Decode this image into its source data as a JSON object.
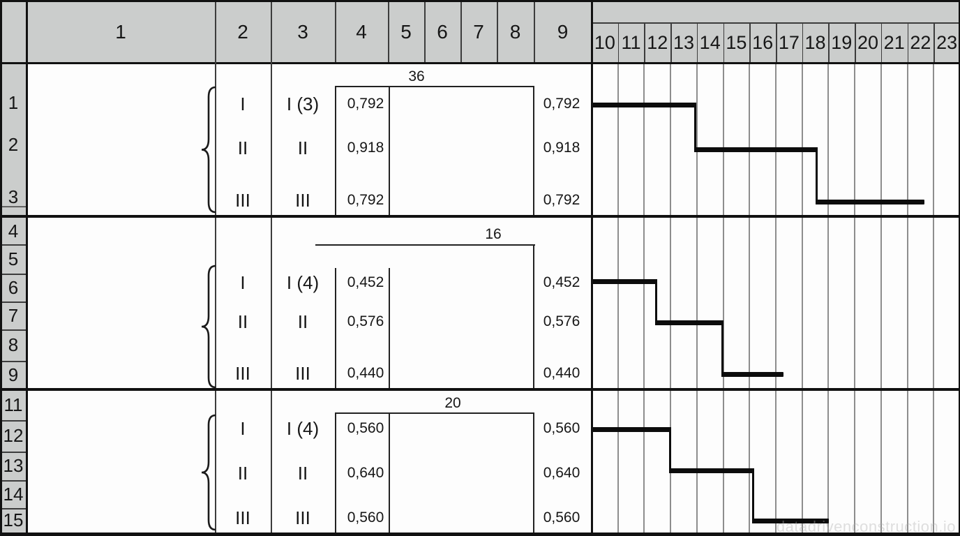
{
  "header": {
    "left_columns": [
      "1",
      "2",
      "3",
      "4",
      "5",
      "6",
      "7",
      "8",
      "9"
    ],
    "right_columns": [
      "10",
      "11",
      "12",
      "13",
      "14",
      "15",
      "16",
      "17",
      "18",
      "19",
      "20",
      "21",
      "22",
      "23"
    ]
  },
  "row_numbers": [
    "1",
    "2",
    "3",
    "4",
    "5",
    "6",
    "7",
    "8",
    "9",
    "11",
    "12",
    "13",
    "14",
    "15"
  ],
  "groups": [
    {
      "duration_label": "36",
      "rows": [
        {
          "col2": "I",
          "col3": "I (3)",
          "col4": "0,792",
          "col9": "0,792"
        },
        {
          "col2": "II",
          "col3": "II",
          "col4": "0,918",
          "col9": "0,918"
        },
        {
          "col2": "III",
          "col3": "III",
          "col4": "0,792",
          "col9": "0,792"
        }
      ]
    },
    {
      "duration_label": "16",
      "rows": [
        {
          "col2": "I",
          "col3": "I (4)",
          "col4": "0,452",
          "col9": "0,452"
        },
        {
          "col2": "II",
          "col3": "II",
          "col4": "0,576",
          "col9": "0,576"
        },
        {
          "col2": "III",
          "col3": "III",
          "col4": "0,440",
          "col9": "0,440"
        }
      ]
    },
    {
      "duration_label": "20",
      "rows": [
        {
          "col2": "I",
          "col3": "I (4)",
          "col4": "0,560",
          "col9": "0,560"
        },
        {
          "col2": "II",
          "col3": "II",
          "col4": "0,640",
          "col9": "0,640"
        },
        {
          "col2": "III",
          "col3": "III",
          "col4": "0,560",
          "col9": "0,560"
        }
      ]
    }
  ],
  "watermark": "datadrivenconstruction.io",
  "colors": {
    "header_fill": "#cbcdcc",
    "grid_line": "#8d8d8d",
    "bar": "#0c0c0c",
    "border": "#111111",
    "watermark": "#bdbdbd"
  },
  "chart_data": {
    "type": "gantt",
    "title": "",
    "x_axis": {
      "columns": [
        10,
        11,
        12,
        13,
        14,
        15,
        16,
        17,
        18,
        19,
        20,
        21,
        22,
        23
      ],
      "unit": "time-column",
      "range": [
        10,
        24
      ]
    },
    "grid": true,
    "series": [
      {
        "group": 1,
        "duration_label": "36",
        "segments": [
          {
            "row": "1",
            "stage": "I",
            "start": 10.0,
            "end": 13.95
          },
          {
            "row": "2",
            "stage": "II",
            "start": 13.95,
            "end": 18.54
          },
          {
            "row": "3",
            "stage": "III",
            "start": 18.54,
            "end": 22.65
          }
        ]
      },
      {
        "group": 2,
        "duration_label": "16",
        "segments": [
          {
            "row": "6",
            "stage": "I",
            "start": 10.0,
            "end": 12.44
          },
          {
            "row": "7",
            "stage": "II",
            "start": 12.44,
            "end": 14.96
          },
          {
            "row": "9",
            "stage": "III",
            "start": 14.96,
            "end": 17.29
          }
        ]
      },
      {
        "group": 3,
        "duration_label": "20",
        "segments": [
          {
            "row": "12",
            "stage": "I",
            "start": 10.0,
            "end": 12.97
          },
          {
            "row": "13",
            "stage": "II",
            "start": 12.97,
            "end": 16.15
          },
          {
            "row": "15",
            "stage": "III",
            "start": 16.15,
            "end": 19.01
          }
        ]
      }
    ]
  }
}
